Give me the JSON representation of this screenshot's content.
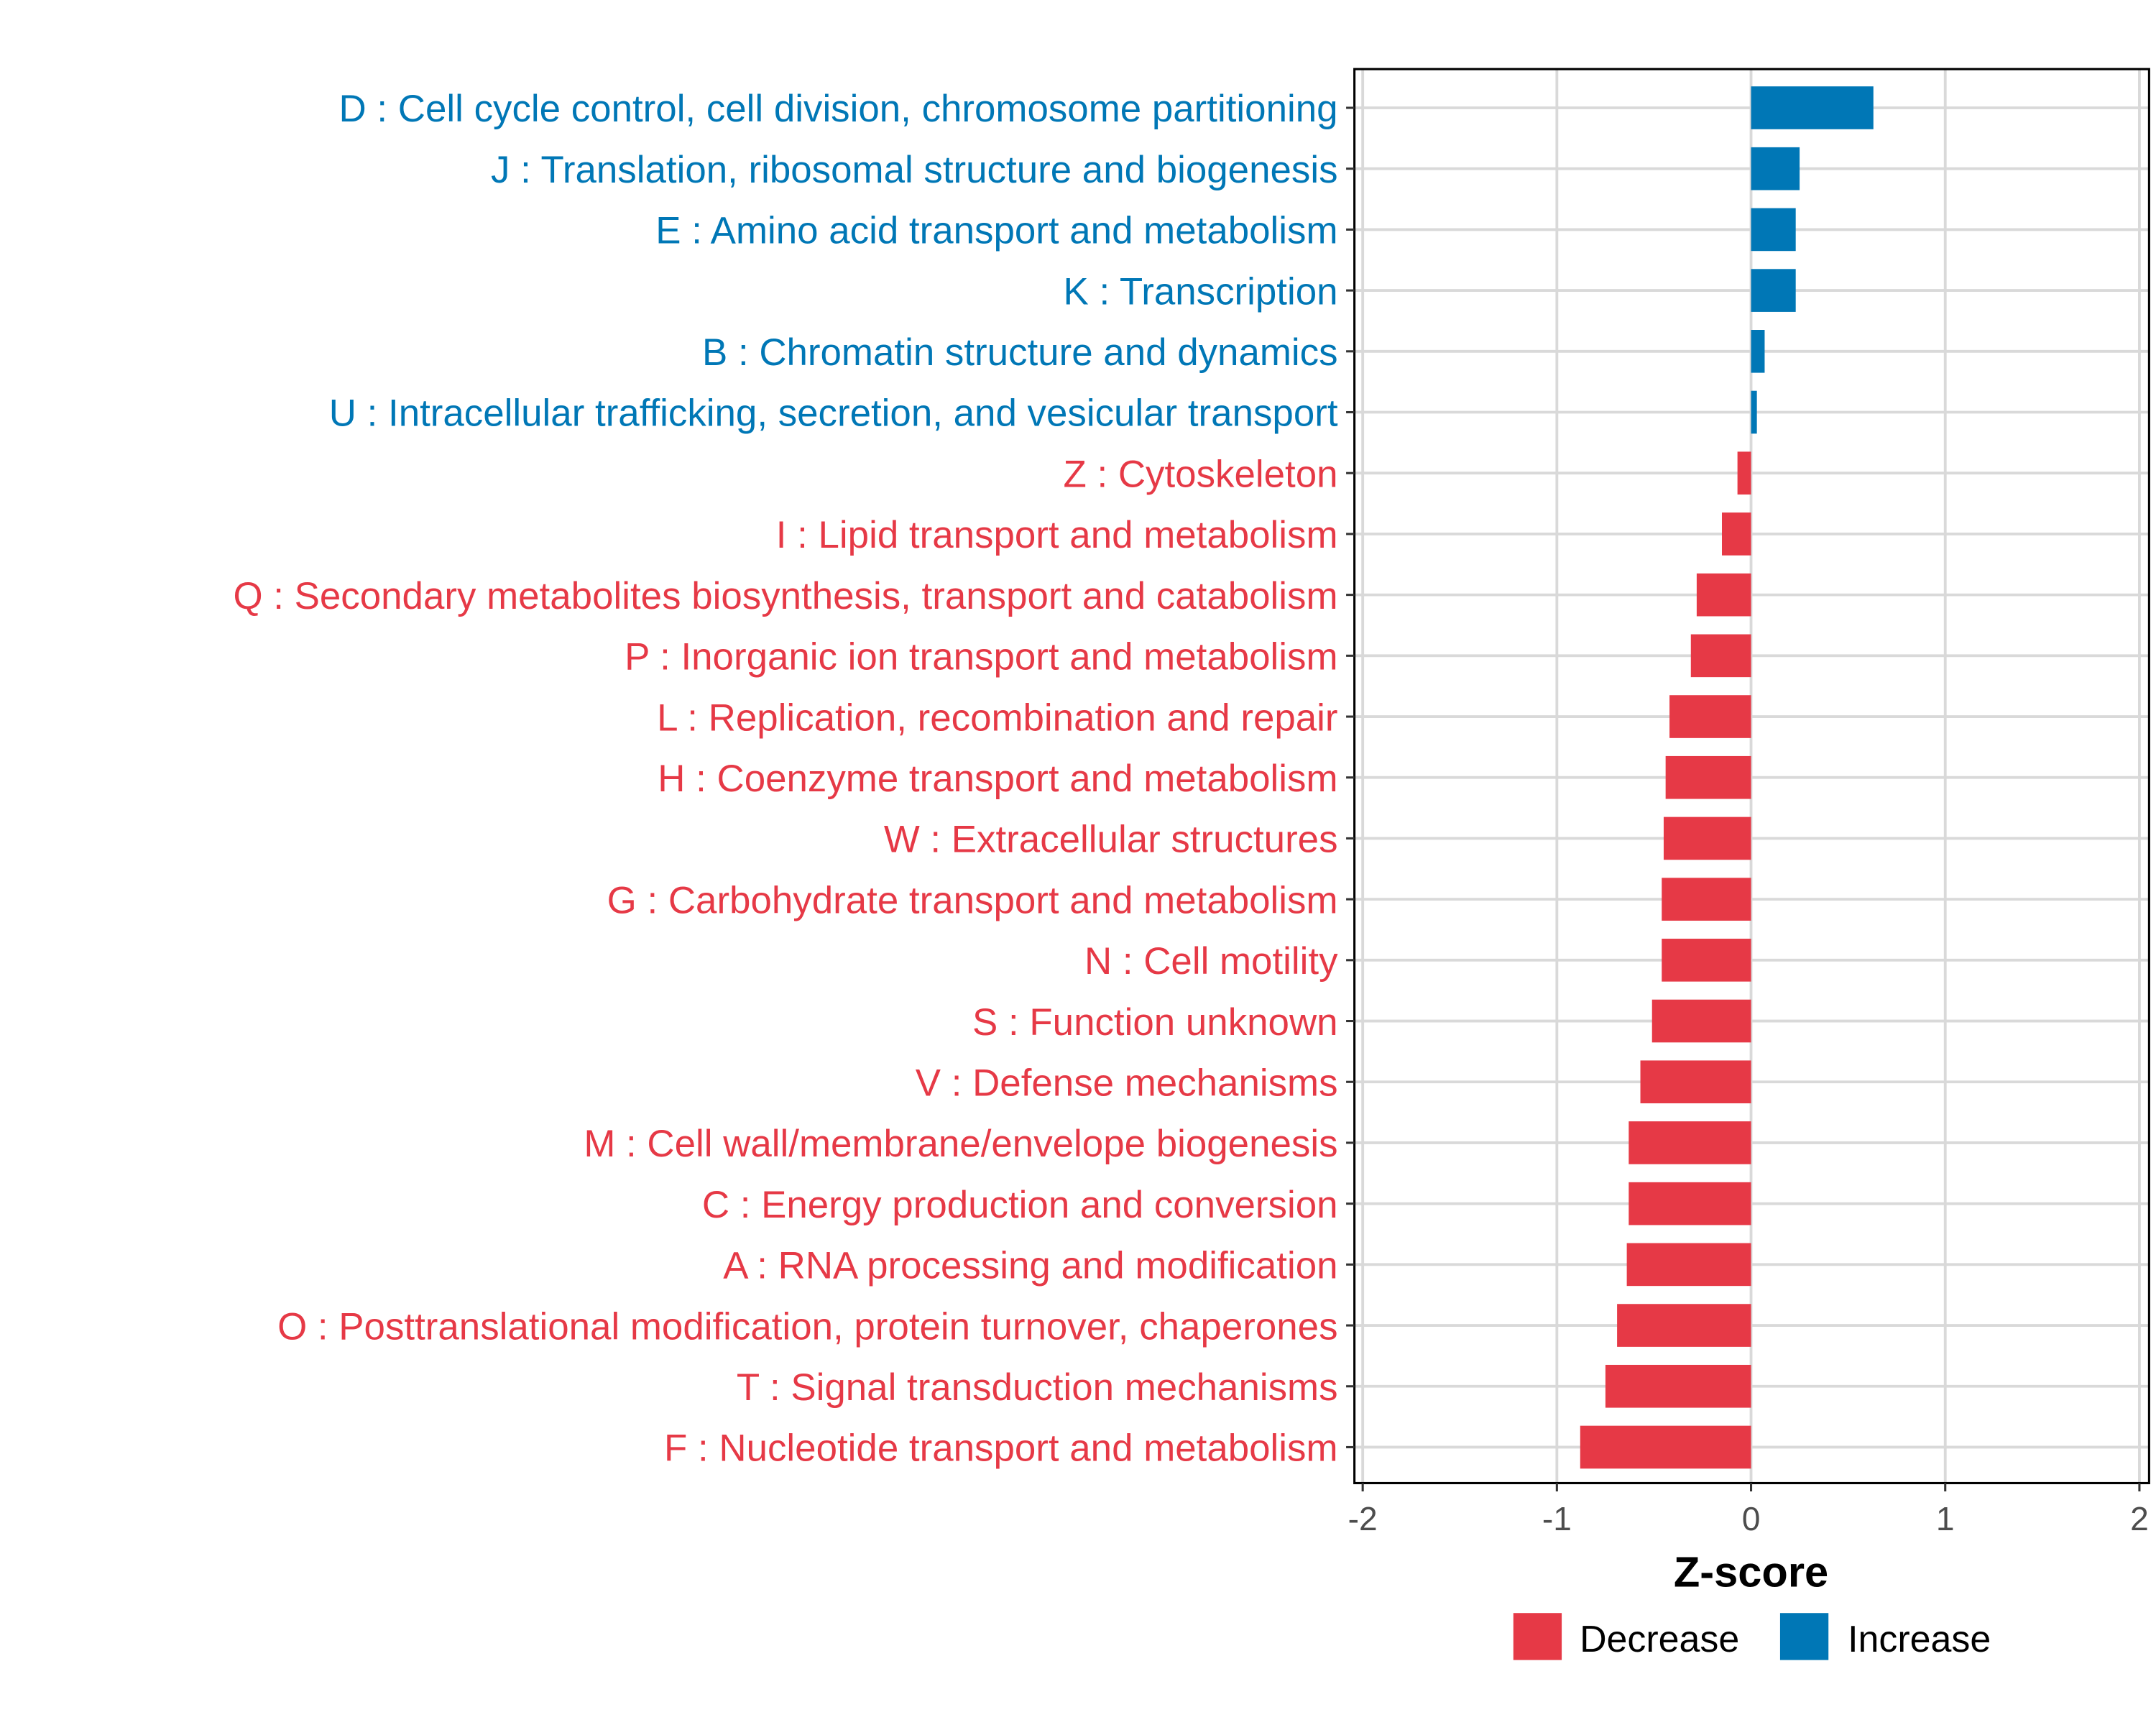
{
  "chart_data": {
    "type": "bar",
    "orientation": "horizontal",
    "title": "",
    "xlabel": "Z-score",
    "ylabel": "",
    "xlim": [
      -2.05,
      2.05
    ],
    "xticks": [
      -2,
      -1,
      0,
      1,
      2
    ],
    "xtick_labels": [
      "-2",
      "-1",
      "0",
      "1",
      "2"
    ],
    "grid": true,
    "legend": {
      "placement": "bottom",
      "entries": [
        {
          "label": "Decrease",
          "color": "#E63946"
        },
        {
          "label": "Increase",
          "color": "#0077B6"
        }
      ]
    },
    "categories": [
      "D : Cell cycle control, cell division, chromosome partitioning",
      "J : Translation, ribosomal structure and biogenesis",
      "E : Amino acid transport and metabolism",
      "K : Transcription",
      "B : Chromatin structure and dynamics",
      "U : Intracellular trafficking, secretion, and vesicular transport",
      "Z : Cytoskeleton",
      "I : Lipid transport and metabolism",
      "Q : Secondary metabolites biosynthesis, transport and catabolism",
      "P : Inorganic ion transport and metabolism",
      "L : Replication, recombination and repair",
      "H : Coenzyme transport and metabolism",
      "W : Extracellular structures",
      "G : Carbohydrate transport and metabolism",
      "N : Cell motility",
      "S : Function unknown",
      "V : Defense mechanisms",
      "M : Cell wall/membrane/envelope biogenesis",
      "C : Energy production and conversion",
      "A : RNA processing and modification",
      "O : Posttranslational modification, protein turnover, chaperones",
      "T : Signal transduction mechanisms",
      "F : Nucleotide transport and metabolism"
    ],
    "values": [
      0.63,
      0.25,
      0.23,
      0.23,
      0.07,
      0.03,
      -0.07,
      -0.15,
      -0.28,
      -0.31,
      -0.42,
      -0.44,
      -0.45,
      -0.46,
      -0.46,
      -0.51,
      -0.57,
      -0.63,
      -0.63,
      -0.64,
      -0.69,
      -0.75,
      -0.88
    ]
  }
}
